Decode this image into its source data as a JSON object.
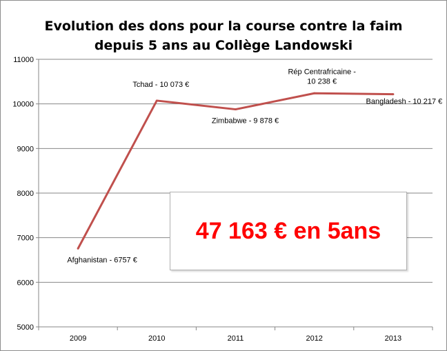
{
  "chart_data": {
    "type": "line",
    "title_lines": [
      "Evolution des dons pour la course contre la faim",
      "depuis 5 ans au Collège Landowski"
    ],
    "categories": [
      "2009",
      "2010",
      "2011",
      "2012",
      "2013"
    ],
    "series": [
      {
        "values": [
          6757,
          10073,
          9878,
          10238,
          10217
        ],
        "color": "#c0504d"
      }
    ],
    "data_labels": [
      [
        "Afghanistan - 6757 €"
      ],
      [
        "Tchad - 10 073 €"
      ],
      [
        "Zimbabwe - 9 878 €"
      ],
      [
        "Rép Centrafricaine -",
        "10 238 €"
      ],
      [
        "Bangladesh - 10 217 €"
      ]
    ],
    "y_ticks": [
      "5000",
      "6000",
      "7000",
      "8000",
      "9000",
      "10000",
      "11000"
    ],
    "ylim": [
      5000,
      11000
    ],
    "grid": true,
    "legend": "none",
    "annotation": "47 163 € en 5ans",
    "annotation_color": "#ff0000"
  }
}
